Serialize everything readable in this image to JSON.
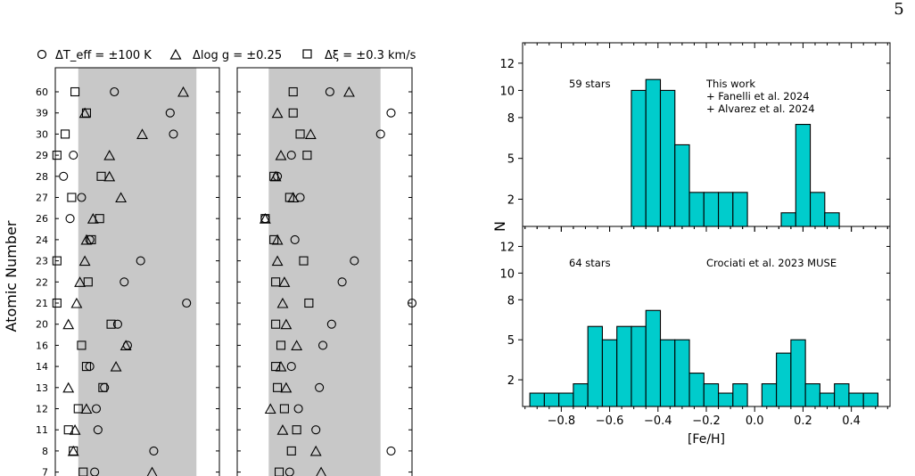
{
  "page_number": "5",
  "chart_data": [
    {
      "type": "scatter",
      "panel": "left",
      "ylabel": "Atomic Number",
      "xlabel": "",
      "legend_placement": "top",
      "legend": {
        "teff": "ΔT_eff = ±100 K",
        "logg": "Δlog g = ±0.25",
        "xi": "Δξ = ±0.3 km/s"
      },
      "categories": [
        "60",
        "39",
        "30",
        "29",
        "28",
        "27",
        "26",
        "24",
        "23",
        "22",
        "21",
        "20",
        "16",
        "14",
        "13",
        "12",
        "11",
        "8",
        "7"
      ],
      "xlim": [
        0,
        1
      ],
      "band": [
        0.14,
        0.86
      ],
      "grid": false,
      "series": [
        {
          "key": "teff",
          "values": [
            0.36,
            0.7,
            0.72,
            0.11,
            0.05,
            0.16,
            0.09,
            0.21,
            0.52,
            0.42,
            0.8,
            0.38,
            0.44,
            0.21,
            0.3,
            0.25,
            0.26,
            0.6,
            0.24
          ]
        },
        {
          "key": "logg",
          "values": [
            0.78,
            0.18,
            0.53,
            0.33,
            0.33,
            0.4,
            0.23,
            0.19,
            0.18,
            0.15,
            0.13,
            0.08,
            0.43,
            0.37,
            0.08,
            0.19,
            0.12,
            0.11,
            0.59
          ]
        },
        {
          "key": "xi",
          "values": [
            0.12,
            0.19,
            0.06,
            0.01,
            0.28,
            0.1,
            0.27,
            0.22,
            0.01,
            0.2,
            0.01,
            0.34,
            0.16,
            0.19,
            0.29,
            0.14,
            0.08,
            0.11,
            0.17
          ]
        }
      ]
    },
    {
      "type": "scatter",
      "panel": "middle",
      "xlabel": "",
      "ylabel": "",
      "categories": [
        "60",
        "39",
        "30",
        "29",
        "28",
        "27",
        "26",
        "24",
        "23",
        "22",
        "21",
        "20",
        "16",
        "14",
        "13",
        "12",
        "11",
        "8",
        "7"
      ],
      "xlim": [
        0,
        1
      ],
      "band": [
        0.18,
        0.82
      ],
      "grid": false,
      "series": [
        {
          "key": "teff",
          "values": [
            0.53,
            0.88,
            0.82,
            0.31,
            0.23,
            0.36,
            0.16,
            0.33,
            0.67,
            0.6,
            1.0,
            0.54,
            0.49,
            0.31,
            0.47,
            0.35,
            0.45,
            0.88,
            0.3
          ]
        },
        {
          "key": "logg",
          "values": [
            0.64,
            0.23,
            0.42,
            0.25,
            0.22,
            0.32,
            0.16,
            0.23,
            0.23,
            0.27,
            0.26,
            0.28,
            0.34,
            0.25,
            0.28,
            0.19,
            0.26,
            0.45,
            0.48
          ]
        },
        {
          "key": "xi",
          "values": [
            0.32,
            0.32,
            0.36,
            0.4,
            0.21,
            0.3,
            0.16,
            0.21,
            0.38,
            0.22,
            0.41,
            0.22,
            0.25,
            0.22,
            0.23,
            0.27,
            0.34,
            0.31,
            0.24
          ]
        }
      ]
    },
    {
      "type": "bar",
      "panel": "right-top",
      "ylabel": "N",
      "xlabel": "",
      "xlim": [
        -0.96,
        0.56
      ],
      "ylim": [
        0,
        13.5
      ],
      "yticks": [
        2,
        5,
        8,
        10,
        12
      ],
      "bin_width": 0.06,
      "bar_color": "#00cccc",
      "annotations": [
        "59 stars",
        "This work",
        "+ Fanelli et al. 2024",
        "+ Alvarez et al. 2024"
      ],
      "bins": [
        {
          "x0": -0.51,
          "value": 10
        },
        {
          "x0": -0.45,
          "value": 10.8
        },
        {
          "x0": -0.39,
          "value": 10
        },
        {
          "x0": -0.33,
          "value": 6
        },
        {
          "x0": -0.27,
          "value": 2.5
        },
        {
          "x0": -0.21,
          "value": 2.5
        },
        {
          "x0": -0.15,
          "value": 2.5
        },
        {
          "x0": -0.09,
          "value": 2.5
        },
        {
          "x0": 0.11,
          "value": 1
        },
        {
          "x0": 0.17,
          "value": 7.5
        },
        {
          "x0": 0.23,
          "value": 2.5
        },
        {
          "x0": 0.29,
          "value": 1
        }
      ]
    },
    {
      "type": "bar",
      "panel": "right-bottom",
      "xlabel": "[Fe/H]",
      "ylabel": "",
      "xlim": [
        -0.96,
        0.56
      ],
      "ylim": [
        0,
        13.5
      ],
      "yticks": [
        2,
        5,
        8,
        10,
        12
      ],
      "xticks": [
        -0.8,
        -0.6,
        -0.4,
        -0.2,
        0.0,
        0.2,
        0.4
      ],
      "xtick_labels": [
        "−0.8",
        "−0.6",
        "−0.4",
        "−0.2",
        "0.0",
        "0.2",
        "0.4"
      ],
      "bin_width": 0.06,
      "bar_color": "#00cccc",
      "annotations": [
        "64 stars",
        "Crociati et al. 2023 MUSE"
      ],
      "bins": [
        {
          "x0": -0.93,
          "value": 1
        },
        {
          "x0": -0.87,
          "value": 1
        },
        {
          "x0": -0.81,
          "value": 1
        },
        {
          "x0": -0.75,
          "value": 1.7
        },
        {
          "x0": -0.69,
          "value": 6
        },
        {
          "x0": -0.63,
          "value": 5
        },
        {
          "x0": -0.57,
          "value": 6
        },
        {
          "x0": -0.51,
          "value": 6
        },
        {
          "x0": -0.45,
          "value": 7.2
        },
        {
          "x0": -0.39,
          "value": 5
        },
        {
          "x0": -0.33,
          "value": 5
        },
        {
          "x0": -0.27,
          "value": 2.5
        },
        {
          "x0": -0.21,
          "value": 1.7
        },
        {
          "x0": -0.15,
          "value": 1
        },
        {
          "x0": -0.09,
          "value": 1.7
        },
        {
          "x0": 0.03,
          "value": 1.7
        },
        {
          "x0": 0.09,
          "value": 4
        },
        {
          "x0": 0.15,
          "value": 5
        },
        {
          "x0": 0.21,
          "value": 1.7
        },
        {
          "x0": 0.27,
          "value": 1
        },
        {
          "x0": 0.33,
          "value": 1.7
        },
        {
          "x0": 0.39,
          "value": 1
        },
        {
          "x0": 0.45,
          "value": 1
        }
      ]
    }
  ]
}
